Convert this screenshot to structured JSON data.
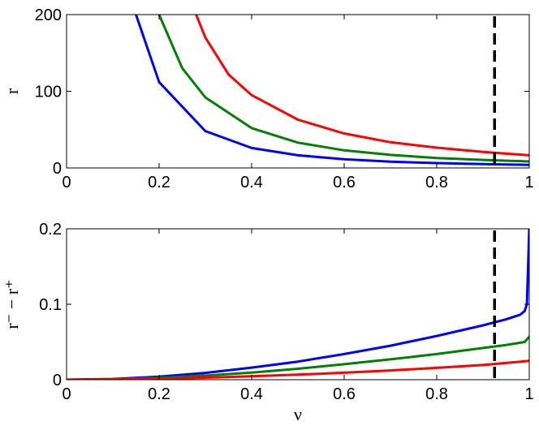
{
  "chart_data": [
    {
      "type": "line",
      "xlabel": "",
      "ylabel": "r",
      "xlim": [
        0,
        1
      ],
      "ylim": [
        0,
        200
      ],
      "xticks": [
        "0",
        "0.2",
        "0.4",
        "0.6",
        "0.8",
        "1"
      ],
      "yticks": [
        "0",
        "100",
        "200"
      ],
      "grid": false,
      "vline": {
        "x": 0.925,
        "color": "#000000",
        "style": "dashed"
      },
      "series": [
        {
          "color": "#0000ff",
          "x": [
            0.15,
            0.2,
            0.3,
            0.4,
            0.5,
            0.6,
            0.7,
            0.8,
            0.9,
            1.0
          ],
          "y": [
            200,
            112,
            48,
            26,
            16.5,
            11.3,
            8.2,
            6.4,
            5.0,
            4.0
          ]
        },
        {
          "color": "#008000",
          "x": [
            0.2,
            0.25,
            0.3,
            0.4,
            0.5,
            0.6,
            0.7,
            0.8,
            0.9,
            1.0
          ],
          "y": [
            200,
            130,
            92,
            52,
            33,
            23,
            17,
            13,
            10.5,
            8.5
          ]
        },
        {
          "color": "#ff0000",
          "x": [
            0.28,
            0.3,
            0.35,
            0.4,
            0.5,
            0.6,
            0.7,
            0.8,
            0.9,
            1.0
          ],
          "y": [
            200,
            170,
            122,
            95,
            63,
            45,
            33.5,
            26.5,
            21,
            16.5
          ]
        }
      ]
    },
    {
      "type": "line",
      "xlabel": "ν",
      "ylabel": "r⁻ − r⁺",
      "xlim": [
        0,
        1
      ],
      "ylim": [
        0,
        0.2
      ],
      "xticks": [
        "0",
        "0.2",
        "0.4",
        "0.6",
        "0.8",
        "1"
      ],
      "yticks": [
        "0",
        "0.1",
        "0.2"
      ],
      "grid": false,
      "vline": {
        "x": 0.925,
        "color": "#000000",
        "style": "dashed"
      },
      "series": [
        {
          "color": "#0000ff",
          "x": [
            0,
            0.1,
            0.2,
            0.3,
            0.4,
            0.5,
            0.6,
            0.7,
            0.8,
            0.9,
            0.95,
            0.98,
            0.99,
            0.995,
            1.0
          ],
          "y": [
            0,
            0.001,
            0.004,
            0.009,
            0.016,
            0.024,
            0.034,
            0.045,
            0.058,
            0.072,
            0.08,
            0.086,
            0.091,
            0.1,
            0.2
          ]
        },
        {
          "color": "#008000",
          "x": [
            0,
            0.1,
            0.2,
            0.3,
            0.4,
            0.5,
            0.6,
            0.7,
            0.8,
            0.9,
            0.95,
            0.99,
            1.0
          ],
          "y": [
            0,
            0.0006,
            0.0025,
            0.0055,
            0.0095,
            0.0145,
            0.0205,
            0.027,
            0.034,
            0.042,
            0.046,
            0.05,
            0.057
          ]
        },
        {
          "color": "#ff0000",
          "x": [
            0,
            0.1,
            0.2,
            0.3,
            0.4,
            0.5,
            0.6,
            0.7,
            0.8,
            0.9,
            1.0
          ],
          "y": [
            0,
            0.0003,
            0.0012,
            0.0027,
            0.0045,
            0.0067,
            0.0093,
            0.0123,
            0.0157,
            0.0195,
            0.025
          ]
        }
      ]
    }
  ]
}
